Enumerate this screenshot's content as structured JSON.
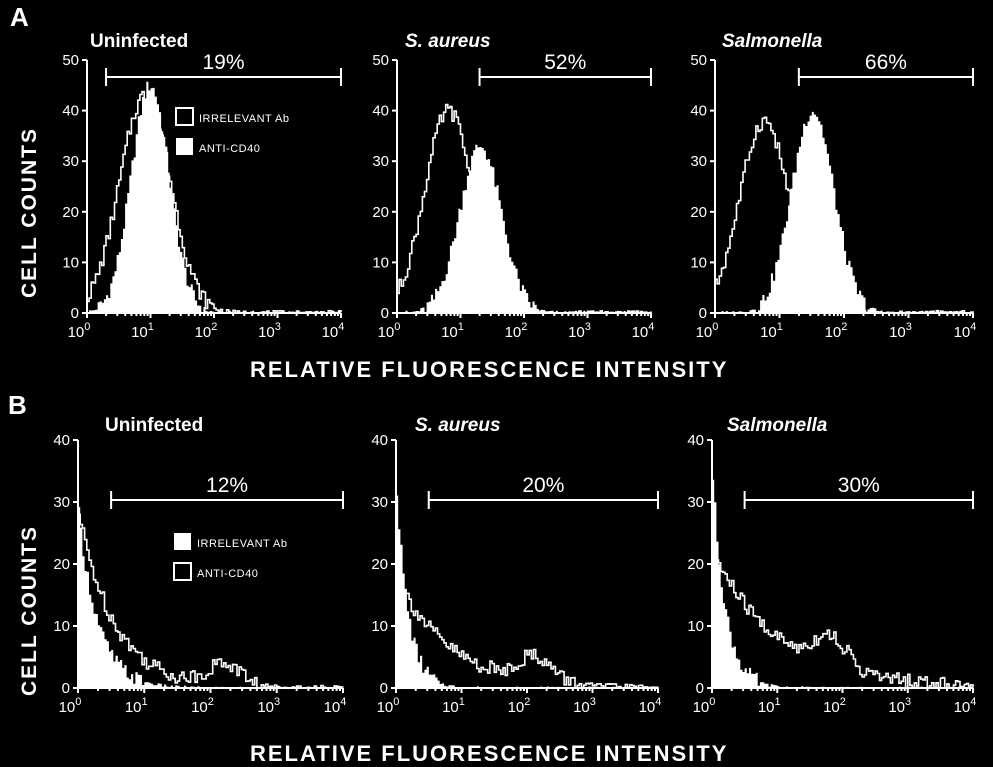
{
  "figure": {
    "panel_a_label": "A",
    "panel_b_label": "B",
    "y_axis_label": "CELL COUNTS",
    "x_axis_label": "RELATIVE FLUORESCENCE INTENSITY",
    "x_tick_base": "10",
    "x_tick_exponents": [
      "0",
      "1",
      "2",
      "3",
      "4"
    ]
  },
  "legend_a": {
    "irrelevant": "IRRELEVANT Ab",
    "anti": "ANTI-CD40"
  },
  "legend_b": {
    "irrelevant": "IRRELEVANT Ab",
    "anti": "ANTI-CD40"
  },
  "chart_data": [
    {
      "type": "histogram",
      "row": "A",
      "title": "Uninfected",
      "italic": false,
      "xlim_log10": [
        0,
        4
      ],
      "ylim": [
        0,
        50
      ],
      "yticks": [
        0,
        10,
        20,
        30,
        40,
        50
      ],
      "gate_log10": [
        0.3,
        4
      ],
      "gate_label": "19%",
      "open_series": {
        "name": "IRRELEVANT Ab",
        "peak_log10": 0.9,
        "sigma": 0.4,
        "peak": 43
      },
      "filled_series": {
        "name": "ANTI-CD40",
        "peak_log10": 0.98,
        "sigma": 0.3,
        "peak": 45
      }
    },
    {
      "type": "histogram",
      "row": "A",
      "title": "S. aureus",
      "italic": true,
      "xlim_log10": [
        0,
        4
      ],
      "ylim": [
        0,
        50
      ],
      "yticks": [
        0,
        10,
        20,
        30,
        40,
        50
      ],
      "gate_log10": [
        1.3,
        4
      ],
      "gate_label": "52%",
      "open_series": {
        "name": "IRRELEVANT Ab",
        "peak_log10": 0.8,
        "sigma": 0.38,
        "peak": 40
      },
      "filled_series": {
        "name": "ANTI-CD40",
        "peak_log10": 1.3,
        "sigma": 0.33,
        "peak": 33
      }
    },
    {
      "type": "histogram",
      "row": "A",
      "title": "Salmonella",
      "italic": true,
      "xlim_log10": [
        0,
        4
      ],
      "ylim": [
        0,
        50
      ],
      "yticks": [
        0,
        10,
        20,
        30,
        40,
        50
      ],
      "gate_log10": [
        1.3,
        4
      ],
      "gate_label": "66%",
      "open_series": {
        "name": "IRRELEVANT Ab",
        "peak_log10": 0.75,
        "sigma": 0.38,
        "peak": 38
      },
      "filled_series": {
        "name": "ANTI-CD40",
        "peak_log10": 1.5,
        "sigma": 0.33,
        "peak": 40
      }
    },
    {
      "type": "histogram",
      "row": "B",
      "title": "Uninfected",
      "italic": false,
      "xlim_log10": [
        0,
        4
      ],
      "ylim": [
        0,
        40
      ],
      "yticks": [
        0,
        10,
        20,
        30,
        40
      ],
      "gate_log10": [
        0.5,
        4
      ],
      "gate_label": "12%",
      "filled_series": {
        "name": "IRRELEVANT Ab",
        "peak": 28,
        "decay": 0.3
      },
      "open_series": {
        "name": "ANTI-CD40",
        "peak": 28,
        "decay": 0.55,
        "bump_log10": 2.2,
        "bump_height": 3.5
      }
    },
    {
      "type": "histogram",
      "row": "B",
      "title": "S. aureus",
      "italic": true,
      "xlim_log10": [
        0,
        4
      ],
      "ylim": [
        0,
        40
      ],
      "yticks": [
        0,
        10,
        20,
        30,
        40
      ],
      "gate_log10": [
        0.5,
        4
      ],
      "gate_label": "20%",
      "filled_series": {
        "name": "IRRELEVANT Ab",
        "peak": 32,
        "decay": 0.18
      },
      "open_series": {
        "name": "ANTI-CD40",
        "peak": 18,
        "decay": 0.8,
        "bump_log10": 2.1,
        "bump_height": 4
      }
    },
    {
      "type": "histogram",
      "row": "B",
      "title": "Salmonella",
      "italic": true,
      "xlim_log10": [
        0,
        4
      ],
      "ylim": [
        0,
        40
      ],
      "yticks": [
        0,
        10,
        20,
        30,
        40
      ],
      "gate_log10": [
        0.5,
        4
      ],
      "gate_label": "30%",
      "filled_series": {
        "name": "IRRELEVANT Ab",
        "peak": 34,
        "decay": 0.2
      },
      "open_series": {
        "name": "ANTI-CD40",
        "peak": 22,
        "decay": 1.0,
        "bump_log10": 1.8,
        "bump_height": 5
      }
    }
  ]
}
